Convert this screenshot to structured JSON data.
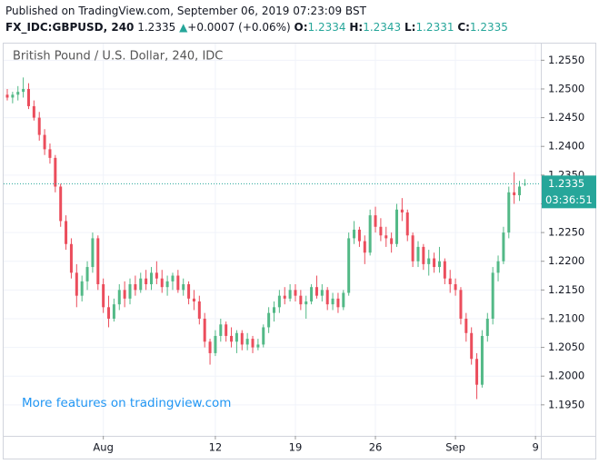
{
  "header": {
    "published": "Published on TradingView.com, September 06, 2019 07:23:09 BST",
    "symbol": "FX_IDC:GBPUSD, 240",
    "last": "1.2335",
    "arrow": "▲",
    "change": "+0.0007 (+0.06%)",
    "open_label": "O:",
    "open": "1.2334",
    "high_label": "H:",
    "high": "1.2343",
    "low_label": "L:",
    "low": "1.2331",
    "close_label": "C:",
    "close": "1.2335"
  },
  "chart_data": {
    "type": "candlestick",
    "title": "British Pound / U.S. Dollar, 240, IDC",
    "watermark": "More features on tradingview.com",
    "up_color": "#53b987",
    "down_color": "#eb4d5c",
    "grid": true,
    "ylim": [
      1.1896,
      1.2579
    ],
    "yticks": [
      {
        "value": 1.195,
        "label": "1.1950"
      },
      {
        "value": 1.2,
        "label": "1.2000"
      },
      {
        "value": 1.205,
        "label": "1.2050"
      },
      {
        "value": 1.21,
        "label": "1.2100"
      },
      {
        "value": 1.215,
        "label": "1.2150"
      },
      {
        "value": 1.22,
        "label": "1.2200"
      },
      {
        "value": 1.225,
        "label": "1.2250"
      },
      {
        "value": 1.23,
        "label": "1.2300"
      },
      {
        "value": 1.235,
        "label": "1.2350"
      },
      {
        "value": 1.24,
        "label": "1.2400"
      },
      {
        "value": 1.245,
        "label": "1.2450"
      },
      {
        "value": 1.25,
        "label": "1.2500"
      },
      {
        "value": 1.255,
        "label": "1.2550"
      }
    ],
    "last_price": {
      "value": 1.2335,
      "label": "1.2335",
      "countdown": "03:36:51",
      "color": "#26a69a"
    },
    "categories": [
      null,
      null,
      null,
      null,
      null,
      null,
      null,
      null,
      null,
      null,
      null,
      null,
      null,
      null,
      null,
      null,
      null,
      null,
      "Aug",
      null,
      null,
      null,
      null,
      null,
      null,
      null,
      null,
      null,
      null,
      null,
      null,
      null,
      null,
      null,
      null,
      null,
      null,
      null,
      null,
      "12",
      null,
      null,
      null,
      null,
      null,
      null,
      null,
      null,
      null,
      null,
      null,
      null,
      null,
      null,
      "19",
      null,
      null,
      null,
      null,
      null,
      null,
      null,
      null,
      null,
      null,
      null,
      null,
      null,
      null,
      "26",
      null,
      null,
      null,
      null,
      null,
      null,
      null,
      null,
      null,
      null,
      null,
      null,
      null,
      null,
      "Sep",
      null,
      null,
      null,
      null,
      null,
      null,
      null,
      null,
      null,
      null,
      null,
      null,
      null,
      null,
      "9"
    ],
    "candles": [
      [
        1.249,
        1.25,
        1.248,
        1.2485
      ],
      [
        1.2485,
        1.2495,
        1.2475,
        1.249
      ],
      [
        1.249,
        1.2505,
        1.248,
        1.2495
      ],
      [
        1.2495,
        1.252,
        1.2485,
        1.25
      ],
      [
        1.25,
        1.251,
        1.2465,
        1.247
      ],
      [
        1.247,
        1.248,
        1.2445,
        1.245
      ],
      [
        1.245,
        1.246,
        1.241,
        1.242
      ],
      [
        1.242,
        1.243,
        1.2385,
        1.2395
      ],
      [
        1.2395,
        1.2405,
        1.237,
        1.238
      ],
      [
        1.238,
        1.2385,
        1.232,
        1.233
      ],
      [
        1.233,
        1.2335,
        1.226,
        1.227
      ],
      [
        1.227,
        1.228,
        1.222,
        1.223
      ],
      [
        1.223,
        1.224,
        1.217,
        1.218
      ],
      [
        1.218,
        1.2195,
        1.212,
        1.214
      ],
      [
        1.214,
        1.2175,
        1.213,
        1.2165
      ],
      [
        1.2165,
        1.22,
        1.215,
        1.219
      ],
      [
        1.219,
        1.225,
        1.218,
        1.224
      ],
      [
        1.224,
        1.2245,
        1.215,
        1.216
      ],
      [
        1.216,
        1.217,
        1.211,
        1.212
      ],
      [
        1.212,
        1.214,
        1.2085,
        1.21
      ],
      [
        1.21,
        1.2135,
        1.2095,
        1.2125
      ],
      [
        1.2125,
        1.216,
        1.2115,
        1.215
      ],
      [
        1.215,
        1.2165,
        1.212,
        1.2135
      ],
      [
        1.2135,
        1.217,
        1.2125,
        1.216
      ],
      [
        1.216,
        1.2175,
        1.214,
        1.215
      ],
      [
        1.215,
        1.218,
        1.2145,
        1.217
      ],
      [
        1.217,
        1.2185,
        1.215,
        1.216
      ],
      [
        1.216,
        1.219,
        1.215,
        1.218
      ],
      [
        1.218,
        1.22,
        1.216,
        1.217
      ],
      [
        1.217,
        1.2185,
        1.2145,
        1.2155
      ],
      [
        1.2155,
        1.2175,
        1.214,
        1.2165
      ],
      [
        1.2165,
        1.218,
        1.215,
        1.2175
      ],
      [
        1.2175,
        1.2185,
        1.2145,
        1.215
      ],
      [
        1.215,
        1.217,
        1.214,
        1.216
      ],
      [
        1.216,
        1.2165,
        1.2125,
        1.2135
      ],
      [
        1.2135,
        1.215,
        1.2115,
        1.213
      ],
      [
        1.213,
        1.214,
        1.209,
        1.21
      ],
      [
        1.21,
        1.211,
        1.205,
        1.206
      ],
      [
        1.206,
        1.2065,
        1.202,
        1.204
      ],
      [
        1.204,
        1.208,
        1.2035,
        1.207
      ],
      [
        1.207,
        1.21,
        1.206,
        1.209
      ],
      [
        1.209,
        1.2095,
        1.206,
        1.207
      ],
      [
        1.207,
        1.2085,
        1.205,
        1.206
      ],
      [
        1.206,
        1.208,
        1.204,
        1.2075
      ],
      [
        1.2075,
        1.208,
        1.2045,
        1.2055
      ],
      [
        1.2055,
        1.2075,
        1.2045,
        1.2065
      ],
      [
        1.2065,
        1.207,
        1.204,
        1.205
      ],
      [
        1.205,
        1.2065,
        1.2045,
        1.2055
      ],
      [
        1.2055,
        1.209,
        1.205,
        1.2085
      ],
      [
        1.2085,
        1.212,
        1.2075,
        1.211
      ],
      [
        1.211,
        1.213,
        1.2095,
        1.212
      ],
      [
        1.212,
        1.215,
        1.211,
        1.214
      ],
      [
        1.214,
        1.2155,
        1.2125,
        1.2135
      ],
      [
        1.2135,
        1.216,
        1.213,
        1.215
      ],
      [
        1.215,
        1.216,
        1.213,
        1.214
      ],
      [
        1.214,
        1.215,
        1.2115,
        1.2125
      ],
      [
        1.2125,
        1.214,
        1.21,
        1.213
      ],
      [
        1.213,
        1.216,
        1.2125,
        1.2155
      ],
      [
        1.2155,
        1.2175,
        1.2135,
        1.214
      ],
      [
        1.214,
        1.216,
        1.213,
        1.215
      ],
      [
        1.215,
        1.2155,
        1.2115,
        1.2125
      ],
      [
        1.2125,
        1.2145,
        1.2115,
        1.2135
      ],
      [
        1.2135,
        1.2145,
        1.211,
        1.212
      ],
      [
        1.212,
        1.215,
        1.2115,
        1.2145
      ],
      [
        1.2145,
        1.225,
        1.214,
        1.224
      ],
      [
        1.224,
        1.227,
        1.223,
        1.2255
      ],
      [
        1.2255,
        1.226,
        1.2225,
        1.2235
      ],
      [
        1.2235,
        1.2245,
        1.2195,
        1.2215
      ],
      [
        1.2215,
        1.229,
        1.221,
        1.228
      ],
      [
        1.228,
        1.2295,
        1.225,
        1.226
      ],
      [
        1.226,
        1.2275,
        1.2235,
        1.2245
      ],
      [
        1.2245,
        1.226,
        1.2225,
        1.224
      ],
      [
        1.224,
        1.225,
        1.2215,
        1.223
      ],
      [
        1.223,
        1.23,
        1.2225,
        1.229
      ],
      [
        1.229,
        1.231,
        1.227,
        1.2285
      ],
      [
        1.2285,
        1.229,
        1.2235,
        1.2245
      ],
      [
        1.2245,
        1.225,
        1.219,
        1.22
      ],
      [
        1.22,
        1.2235,
        1.219,
        1.2225
      ],
      [
        1.2225,
        1.223,
        1.2185,
        1.2195
      ],
      [
        1.2195,
        1.222,
        1.2175,
        1.2205
      ],
      [
        1.2205,
        1.2215,
        1.218,
        1.219
      ],
      [
        1.219,
        1.2225,
        1.218,
        1.22
      ],
      [
        1.22,
        1.2205,
        1.216,
        1.217
      ],
      [
        1.217,
        1.2185,
        1.2145,
        1.216
      ],
      [
        1.216,
        1.217,
        1.214,
        1.215
      ],
      [
        1.215,
        1.2155,
        1.209,
        1.21
      ],
      [
        1.21,
        1.211,
        1.206,
        1.2075
      ],
      [
        1.2075,
        1.2085,
        1.202,
        1.203
      ],
      [
        1.203,
        1.204,
        1.196,
        1.1985
      ],
      [
        1.1985,
        1.208,
        1.198,
        1.207
      ],
      [
        1.207,
        1.211,
        1.206,
        1.21
      ],
      [
        1.21,
        1.219,
        1.209,
        1.218
      ],
      [
        1.218,
        1.221,
        1.2165,
        1.22
      ],
      [
        1.22,
        1.226,
        1.2195,
        1.225
      ],
      [
        1.225,
        1.233,
        1.224,
        1.232
      ],
      [
        1.232,
        1.2355,
        1.23,
        1.2315
      ],
      [
        1.2315,
        1.234,
        1.2305,
        1.233
      ],
      [
        1.2334,
        1.2343,
        1.2331,
        1.2335
      ],
      null,
      null
    ]
  }
}
